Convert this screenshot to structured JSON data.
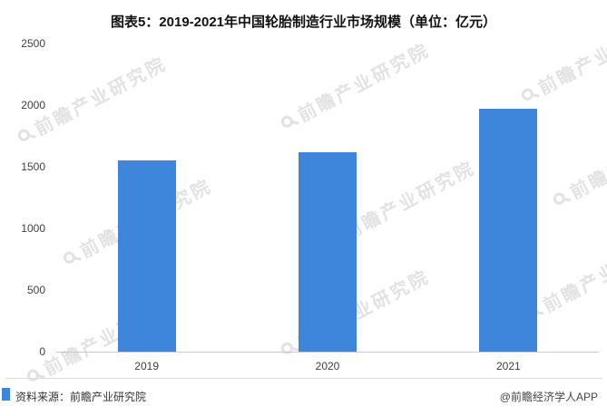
{
  "title": "图表5：2019-2021年中国轮胎制造行业市场规模（单位：亿元）",
  "footer": {
    "source": "资料来源：前瞻产业研究院",
    "credit": "@前瞻经济学人APP"
  },
  "watermark": {
    "text": "前瞻产业研究院",
    "icon": "magnifier-icon"
  },
  "colors": {
    "bar": "#3E86DB",
    "axis_line": "#c8c8c8",
    "text": "#404040",
    "watermark": "#cccccc"
  },
  "chart_data": {
    "type": "bar",
    "categories": [
      "2019",
      "2020",
      "2021"
    ],
    "values": [
      1550,
      1620,
      1970
    ],
    "title": "图表5：2019-2021年中国轮胎制造行业市场规模（单位：亿元）",
    "xlabel": "",
    "ylabel": "",
    "ylim": [
      0,
      2500
    ],
    "yticks": [
      0,
      500,
      1000,
      1500,
      2000,
      2500
    ],
    "grid": false,
    "legend": "none"
  }
}
